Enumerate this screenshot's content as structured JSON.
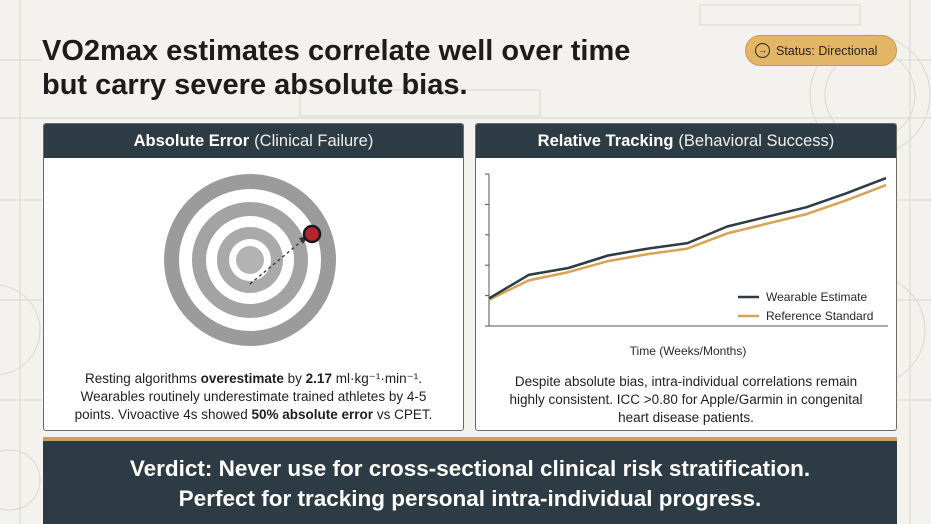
{
  "title": {
    "line1": "VO2max estimates correlate well over time",
    "line2": "but carry severe absolute bias."
  },
  "status": {
    "label": "Status: Directional",
    "icon": "arrow-right-circle-icon",
    "color": "#e3b567"
  },
  "left_panel": {
    "title_bold": "Absolute Error",
    "title_sub": "(Clinical Failure)",
    "target_icon": "bullseye-target",
    "caption": {
      "l1_a": "Resting algorithms ",
      "l1_b": "overestimate",
      "l1_c": " by ",
      "l1_d": "2.17",
      "l1_e": " ml·kg⁻¹·min⁻¹.",
      "l2": "Wearables routinely underestimate trained athletes by 4-5",
      "l3_a": "points. Vivoactive 4s showed ",
      "l3_b": "50% absolute error",
      "l3_c": " vs CPET."
    }
  },
  "right_panel": {
    "title_bold": "Relative Tracking",
    "title_sub": "(Behavioral Success)",
    "caption": {
      "l1": "Despite absolute bias, intra-individual correlations remain",
      "l2": "highly consistent. ICC >0.80 for Apple/Garmin in congenital",
      "l3": "heart disease patients."
    }
  },
  "chart_data": {
    "type": "line",
    "xlabel": "Time (Weeks/Months)",
    "ylabel": "",
    "legend_position": "bottom-right",
    "x": [
      0,
      1,
      2,
      3,
      4,
      5,
      6,
      7,
      8,
      9,
      10
    ],
    "series": [
      {
        "name": "Wearable Estimate",
        "color": "#2d3b44",
        "values": [
          20,
          37,
          42,
          51,
          56,
          60,
          72,
          79,
          86,
          96,
          107
        ]
      },
      {
        "name": "Reference Standard",
        "color": "#d9a255",
        "values": [
          19,
          33,
          39,
          47,
          52,
          56,
          67,
          74,
          81,
          91,
          102
        ]
      }
    ],
    "ylim": [
      0,
      110
    ]
  },
  "verdict": {
    "line1": "Verdict: Never use for cross-sectional clinical risk stratification.",
    "line2": "Perfect for tracking personal intra-individual progress."
  }
}
